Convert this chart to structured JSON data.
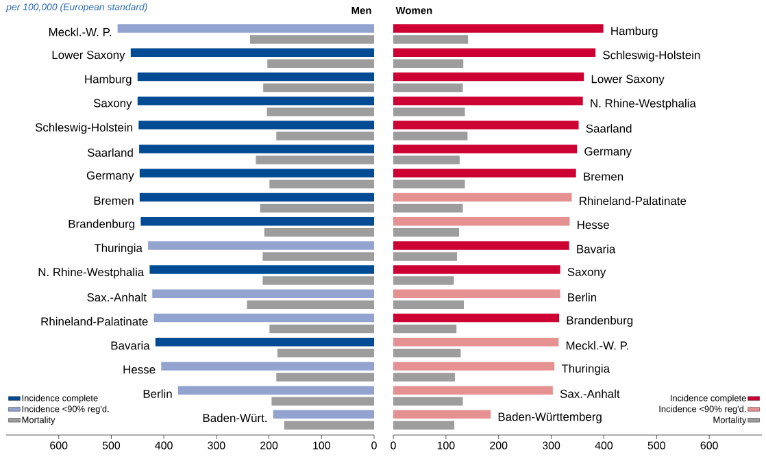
{
  "chart_data": [
    {
      "type": "bar",
      "orientation": "horizontal",
      "title": "Men",
      "subtitle": "per 100,000 (European standard)",
      "categories": [
        "Meckl.-W. P.",
        "Lower Saxony",
        "Hamburg",
        "Saxony",
        "Schleswig-Holstein",
        "Saarland",
        "Germany",
        "Bremen",
        "Brandenburg",
        "Thuringia",
        "N. Rhine-Westphalia",
        "Sax.-Anhalt",
        "Rhineland-Palatinate",
        "Bavaria",
        "Hesse",
        "Berlin",
        "Baden-Würt."
      ],
      "series": [
        {
          "name": "Incidence complete",
          "color": "#004b93",
          "values": [
            null,
            463,
            450,
            450,
            448,
            447,
            446,
            446,
            444,
            null,
            427,
            null,
            null,
            416,
            null,
            null,
            null
          ]
        },
        {
          "name": "Incidence <90% reg'd.",
          "color": "#93a3d0",
          "values": [
            488,
            null,
            null,
            null,
            null,
            null,
            null,
            null,
            null,
            430,
            null,
            422,
            419,
            null,
            405,
            373,
            192
          ]
        },
        {
          "name": "Mortality",
          "color": "#9d9d9d",
          "values": [
            236,
            203,
            211,
            204,
            186,
            225,
            199,
            217,
            209,
            212,
            212,
            242,
            199,
            184,
            186,
            195,
            171
          ]
        }
      ],
      "xlim": [
        700,
        0
      ],
      "xticks": [
        0,
        100,
        200,
        300,
        400,
        500,
        600
      ],
      "legend": "bottom left"
    },
    {
      "type": "bar",
      "orientation": "horizontal",
      "title": "Women",
      "categories": [
        "Hamburg",
        "Schleswig-Holstein",
        "Lower Saxony",
        "N. Rhine-Westphalia",
        "Saarland",
        "Germany",
        "Bremen",
        "Rhineland-Palatinate",
        "Hesse",
        "Bavaria",
        "Saxony",
        "Berlin",
        "Brandenburg",
        "Meckl.-W. P.",
        "Thuringia",
        "Sax.-Anhalt",
        "Baden-Württemberg"
      ],
      "series": [
        {
          "name": "Incidence complete",
          "color": "#cc0033",
          "values": [
            399,
            384,
            362,
            360,
            352,
            349,
            347,
            null,
            null,
            334,
            317,
            null,
            315,
            null,
            null,
            null,
            null
          ]
        },
        {
          "name": "Incidence <90% reg'd.",
          "color": "#e69191",
          "values": [
            null,
            null,
            null,
            null,
            null,
            null,
            null,
            339,
            335,
            null,
            null,
            317,
            null,
            314,
            306,
            303,
            185
          ]
        },
        {
          "name": "Mortality",
          "color": "#9d9d9d",
          "values": [
            142,
            133,
            132,
            136,
            141,
            126,
            136,
            132,
            125,
            121,
            115,
            134,
            120,
            128,
            117,
            132,
            116
          ]
        }
      ],
      "xlim": [
        0,
        700
      ],
      "xticks": [
        0,
        100,
        200,
        300,
        400,
        500,
        600
      ],
      "legend": "bottom right"
    }
  ]
}
